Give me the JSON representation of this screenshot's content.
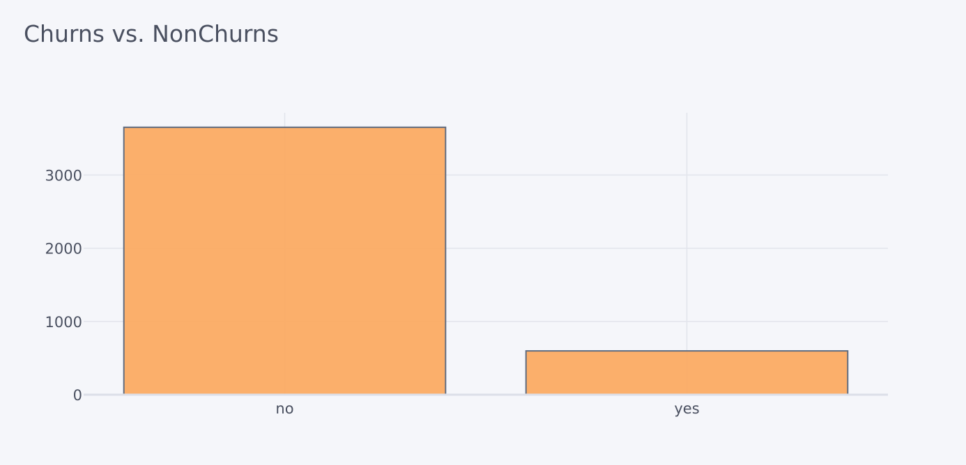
{
  "chart_data": {
    "type": "bar",
    "title": "Churns vs. NonChurns",
    "xlabel": "",
    "ylabel": "",
    "categories": [
      "no",
      "yes"
    ],
    "values": [
      3652,
      598
    ],
    "ylim": [
      0,
      3850
    ],
    "yticks": [
      0,
      1000,
      2000,
      3000
    ],
    "grid": true,
    "bar_color": "#fbab63",
    "bar_edge_color": "#5f6b7f",
    "background_color": "#f5f6fa",
    "grid_color": "#e2e4ec"
  }
}
